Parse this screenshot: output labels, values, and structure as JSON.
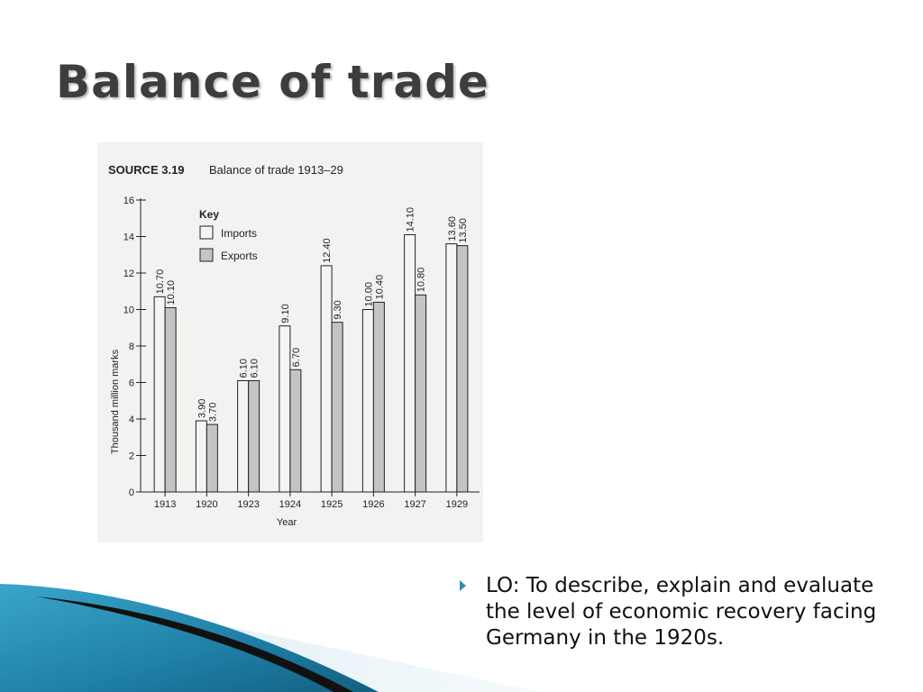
{
  "slide": {
    "title": "Balance of trade",
    "lo_text": "LO: To describe, explain and evaluate the level of economic recovery facing Germany in the 1920s."
  },
  "chart_data": {
    "type": "bar",
    "source_label": "SOURCE 3.19",
    "title": "Balance of trade 1913–29",
    "xlabel": "Year",
    "ylabel": "Thousand million marks",
    "ylim": [
      0,
      16
    ],
    "yticks": [
      0,
      2,
      4,
      6,
      8,
      10,
      12,
      14,
      16
    ],
    "categories": [
      "1913",
      "1920",
      "1923",
      "1924",
      "1925",
      "1926",
      "1927",
      "1929"
    ],
    "legend_title": "Key",
    "legend_position": "top-left",
    "series": [
      {
        "name": "Imports",
        "color": "#f4f4f2",
        "values": [
          10.7,
          3.9,
          6.1,
          9.1,
          12.4,
          10.0,
          14.1,
          13.6
        ],
        "labels": [
          "10.70",
          "3.90",
          "6.10",
          "9.10",
          "12.40",
          "10.00",
          "14.10",
          "13.60"
        ]
      },
      {
        "name": "Exports",
        "color": "#c4c4c4",
        "values": [
          10.1,
          3.7,
          6.1,
          6.7,
          9.3,
          10.4,
          10.8,
          13.5
        ],
        "labels": [
          "10.10",
          "3.70",
          "6.10",
          "6.70",
          "9.30",
          "10.40",
          "10.80",
          "13.50"
        ]
      }
    ]
  },
  "theme": {
    "accent": "#2a8fb8",
    "bar_stroke": "#222222"
  }
}
